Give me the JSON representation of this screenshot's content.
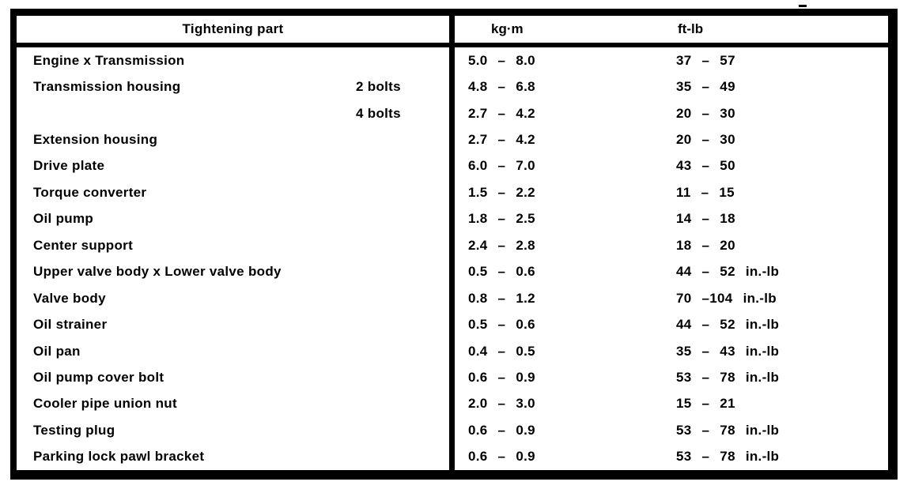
{
  "table": {
    "headers": {
      "part": "Tightening part",
      "kgm": "kg·m",
      "ftlb": "ft-lb"
    },
    "rows": [
      {
        "part": "Engine x Transmission",
        "sub": "",
        "kgm": "5.0 – 8.0",
        "ftlb": "37 – 57"
      },
      {
        "part": "Transmission housing",
        "sub": "2 bolts",
        "kgm": "4.8 – 6.8",
        "ftlb": "35 – 49"
      },
      {
        "part": "",
        "sub": "4 bolts",
        "kgm": "2.7 – 4.2",
        "ftlb": "20 – 30"
      },
      {
        "part": "Extension housing",
        "sub": "",
        "kgm": "2.7 – 4.2",
        "ftlb": "20 – 30"
      },
      {
        "part": "Drive plate",
        "sub": "",
        "kgm": "6.0 – 7.0",
        "ftlb": "43 – 50"
      },
      {
        "part": "Torque converter",
        "sub": "",
        "kgm": "1.5 – 2.2",
        "ftlb": "11 – 15"
      },
      {
        "part": "Oil pump",
        "sub": "",
        "kgm": "1.8 – 2.5",
        "ftlb": "14 – 18"
      },
      {
        "part": "Center support",
        "sub": "",
        "kgm": "2.4 – 2.8",
        "ftlb": "18 – 20"
      },
      {
        "part": "Upper valve body x Lower valve body",
        "sub": "",
        "kgm": "0.5 – 0.6",
        "ftlb": "44 – 52 in.-lb"
      },
      {
        "part": "Valve body",
        "sub": "",
        "kgm": "0.8 – 1.2",
        "ftlb": "70 –104 in.-lb"
      },
      {
        "part": "Oil strainer",
        "sub": "",
        "kgm": "0.5 – 0.6",
        "ftlb": "44 – 52 in.-lb"
      },
      {
        "part": "Oil pan",
        "sub": "",
        "kgm": "0.4 – 0.5",
        "ftlb": "35 – 43 in.-lb"
      },
      {
        "part": "Oil pump cover bolt",
        "sub": "",
        "kgm": "0.6 – 0.9",
        "ftlb": "53 – 78 in.-lb"
      },
      {
        "part": "Cooler pipe union nut",
        "sub": "",
        "kgm": "2.0 – 3.0",
        "ftlb": "15 – 21"
      },
      {
        "part": "Testing plug",
        "sub": "",
        "kgm": "0.6 – 0.9",
        "ftlb": "53 – 78 in.-lb"
      },
      {
        "part": "Parking lock pawl bracket",
        "sub": "",
        "kgm": "0.6 – 0.9",
        "ftlb": "53 – 78 in.-lb"
      }
    ]
  },
  "colors": {
    "ink": "#000000",
    "paper": "#ffffff"
  }
}
